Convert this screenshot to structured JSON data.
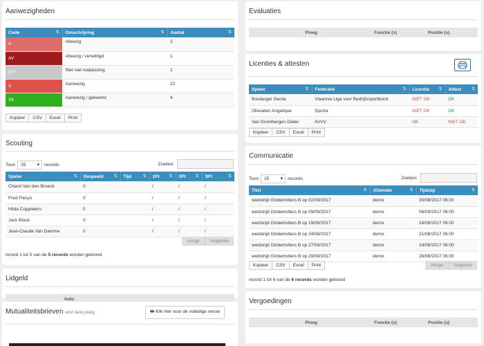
{
  "aanwezigheden": {
    "title": "Aanwezigheden",
    "headers": [
      "Code",
      "Omschrijving",
      "Aantal"
    ],
    "rows": [
      {
        "code": "A",
        "color": "#dd6e6a",
        "desc": "Afwezig",
        "count": "2"
      },
      {
        "code": "AV",
        "color": "#9e1b1e",
        "desc": "Afwezig / verwittigd",
        "count": "1"
      },
      {
        "code": "N/T",
        "color": "#c9c9c9",
        "desc": "Niet van toepassing",
        "count": "1"
      },
      {
        "code": "X",
        "color": "#dd524c",
        "desc": "Aanwezig",
        "count": "22"
      },
      {
        "code": "XK",
        "color": "#2fae1e",
        "desc": "Aanwezig / gekwetst",
        "count": "4"
      }
    ],
    "buttons": [
      "Kopieer",
      "CSV",
      "Excel",
      "Print"
    ]
  },
  "scouting": {
    "title": "Scouting",
    "toon_label": "Toon",
    "toon_value": "25",
    "records_label": "records",
    "zoeken_label": "Zoeken:",
    "headers": [
      "Speler",
      "Gespeeld",
      "Tijd",
      "1Pt",
      "2Pt",
      "3Pt"
    ],
    "rows": [
      [
        "Charel Van den Broeck",
        "0",
        "",
        "/",
        "/",
        "/"
      ],
      [
        "Fred Flecyn",
        "0",
        "",
        "/",
        "/",
        "/"
      ],
      [
        "Hilda Coppieters",
        "0",
        "",
        "/",
        "/",
        "/"
      ],
      [
        "Jack Black",
        "0",
        "",
        "/",
        "/",
        "/"
      ],
      [
        "Jean-Claude Van Damme",
        "0",
        "",
        "/",
        "/",
        "/"
      ]
    ],
    "prev": "Vorige",
    "next": "Volgende",
    "info_pre": "record 1 tot 5 van de ",
    "info_bold": "5 records",
    "info_post": " worden getoond"
  },
  "lidgeld": {
    "title": "Lidgeld",
    "todo": "todo"
  },
  "mutualiteit": {
    "title": "Mutualiteitsbrieven",
    "subtitle": "voor deze ploeg",
    "button": "Klik hier voor de volledige versie"
  },
  "evaluaties": {
    "title": "Evaluaties",
    "headers": [
      "Ploeg",
      "Functie (s)",
      "Positie (s)"
    ]
  },
  "licenties": {
    "title": "Licenties & attesten",
    "headers": [
      "Speler",
      "Federatie",
      "Licentie",
      "Attest"
    ],
    "rows": [
      {
        "speler": "Boulanger Gerda",
        "federatie": "Vlaamse Liga voor Bedrijfssportbond",
        "licentie": "NIET OK",
        "lic_ok": false,
        "attest": "OK",
        "att_ok": true
      },
      {
        "speler": "Olievaten Angelique",
        "federatie": "Sporta",
        "licentie": "NIET OK",
        "lic_ok": false,
        "attest": "OK",
        "att_ok": true
      },
      {
        "speler": "Van Grombergen Dieter",
        "federatie": "AVVV",
        "licentie": "OK",
        "lic_ok": true,
        "attest": "NIET OK",
        "att_ok": false
      }
    ],
    "buttons": [
      "Kopieer",
      "CSV",
      "Excel",
      "Print"
    ]
  },
  "communicatie": {
    "title": "Communicatie",
    "toon_label": "Toon",
    "toon_value": "25",
    "records_label": "records",
    "zoeken_label": "Zoeken:",
    "headers": [
      "Titel",
      "Afzender",
      "Tijdstip"
    ],
    "rows": [
      [
        "wedstrijd Globetrotters B op 02/09/2017",
        "demo",
        "30/08/2017 06:00"
      ],
      [
        "wedstrijd Globetrotters B op 09/09/2017",
        "demo",
        "06/09/2017 06:00"
      ],
      [
        "wedstrijd Globetrotters B op 19/08/2017",
        "demo",
        "16/08/2017 06:00"
      ],
      [
        "wedstrijd Globetrotters B op 24/08/2017",
        "demo",
        "21/08/2017 06:00"
      ],
      [
        "wedstrijd Globetrotters B op 27/08/2017",
        "demo",
        "24/08/2017 06:00"
      ],
      [
        "wedstrijd Globetrotters B op 29/08/2017",
        "demo",
        "26/08/2017 06:00"
      ]
    ],
    "buttons": [
      "Kopieer",
      "CSV",
      "Excel",
      "Print"
    ],
    "prev": "Vorige",
    "next": "Volgende",
    "info_pre": "record 1 tot 6 van de ",
    "info_bold": "6 records",
    "info_post": " worden getoond"
  },
  "vergoedingen": {
    "title": "Vergoedingen",
    "headers": [
      "Ploeg",
      "Functie (s)",
      "Positie (s)"
    ]
  }
}
